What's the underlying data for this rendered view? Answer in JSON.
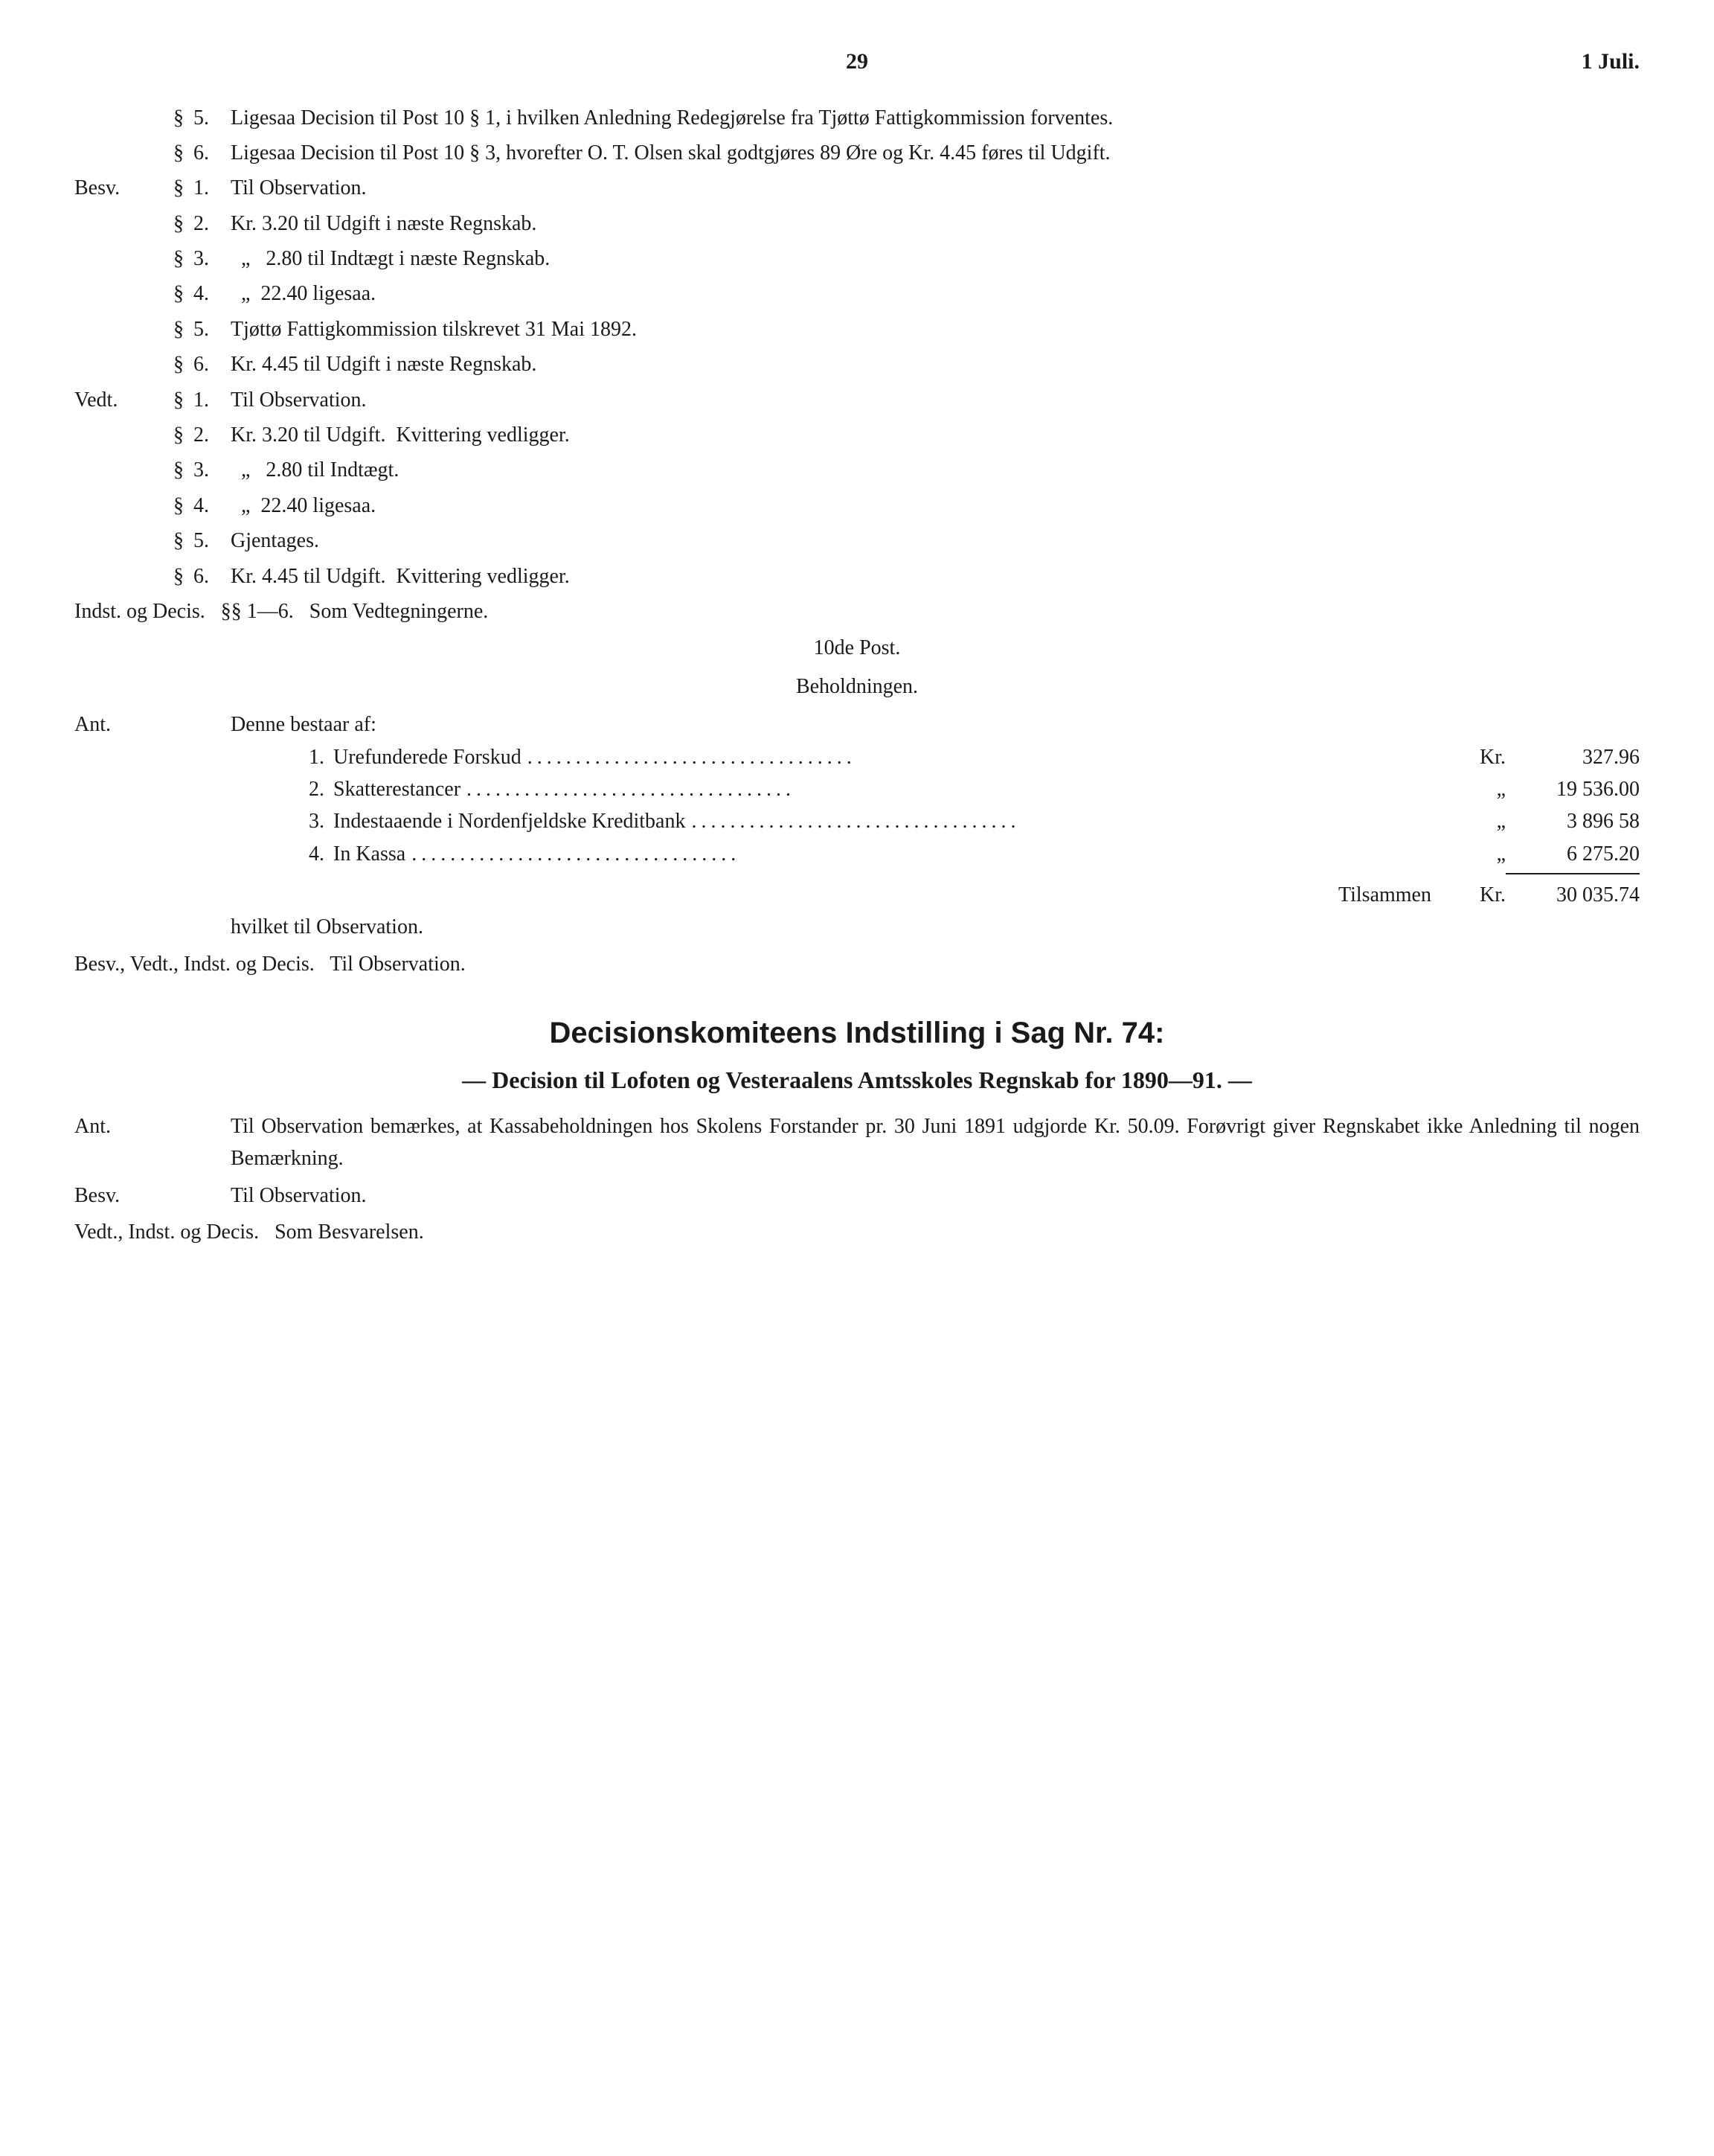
{
  "header": {
    "page_number": "29",
    "date": "1 Juli."
  },
  "top_entries": [
    {
      "margin": "",
      "sym": "§",
      "num": "5.",
      "text": "Ligesaa Decision til Post 10 § 1, i hvilken Anledning Redegjørelse fra Tjøttø Fattigkommission forventes."
    },
    {
      "margin": "",
      "sym": "§",
      "num": "6.",
      "text": "Ligesaa Decision til Post 10 § 3, hvorefter O. T. Olsen skal godtgjøres 89 Øre og Kr. 4.45 føres til Udgift."
    },
    {
      "margin": "Besv.",
      "sym": "§",
      "num": "1.",
      "text": "Til Observation."
    },
    {
      "margin": "",
      "sym": "§",
      "num": "2.",
      "text": "Kr. 3.20 til Udgift i næste Regnskab."
    },
    {
      "margin": "",
      "sym": "§",
      "num": "3.",
      "text": "  „   2.80 til Indtægt i næste Regnskab."
    },
    {
      "margin": "",
      "sym": "§",
      "num": "4.",
      "text": "  „  22.40 ligesaa."
    },
    {
      "margin": "",
      "sym": "§",
      "num": "5.",
      "text": "Tjøttø Fattigkommission tilskrevet 31 Mai 1892."
    },
    {
      "margin": "",
      "sym": "§",
      "num": "6.",
      "text": "Kr. 4.45 til Udgift i næste Regnskab."
    },
    {
      "margin": "Vedt.",
      "sym": "§",
      "num": "1.",
      "text": "Til Observation."
    },
    {
      "margin": "",
      "sym": "§",
      "num": "2.",
      "text": "Kr. 3.20 til Udgift.  Kvittering vedligger."
    },
    {
      "margin": "",
      "sym": "§",
      "num": "3.",
      "text": "  „   2.80 til Indtægt."
    },
    {
      "margin": "",
      "sym": "§",
      "num": "4.",
      "text": "  „  22.40 ligesaa."
    },
    {
      "margin": "",
      "sym": "§",
      "num": "5.",
      "text": "Gjentages."
    },
    {
      "margin": "",
      "sym": "§",
      "num": "6.",
      "text": "Kr. 4.45 til Udgift.  Kvittering vedligger."
    }
  ],
  "indst_line": "Indst. og Decis.   §§ 1—6.   Som Vedtegningerne.",
  "post_title": "10de Post.",
  "post_sub": "Beholdningen.",
  "ant_label": "Ant.",
  "ant_intro": "Denne bestaar af:",
  "beholdning": [
    {
      "n": "1.",
      "desc": "Urefunderede Forskud",
      "kr": "Kr.",
      "val": "327.96"
    },
    {
      "n": "2.",
      "desc": "Skatterestancer",
      "kr": "„",
      "val": "19 536.00"
    },
    {
      "n": "3.",
      "desc": "Indestaaende i Nordenfjeldske Kreditbank",
      "kr": "„",
      "val": "3 896 58"
    },
    {
      "n": "4.",
      "desc": "In Kassa",
      "kr": "„",
      "val": "6 275.20"
    }
  ],
  "sum": {
    "label": "Tilsammen",
    "kr": "Kr.",
    "val": "30 035.74"
  },
  "obs_line": "hvilket til Observation.",
  "bvid_line": "Besv., Vedt., Indst. og Decis.   Til Observation.",
  "title": "Decisionskomiteens Indstilling i Sag Nr. 74:",
  "subtitle": "— Decision til Lofoten og Vesteraalens Amtsskoles Regnskab for 1890—91. —",
  "ant2": {
    "label": "Ant.",
    "text": "Til Observation bemærkes, at Kassabeholdningen hos Skolens Forstander pr. 30 Juni 1891 udgjorde Kr. 50.09.  Forøvrigt giver Regnskabet ikke Anledning til nogen Bemærkning."
  },
  "besv2": {
    "label": "Besv.",
    "text": "Til Observation."
  },
  "final": "Vedt., Indst. og Decis.   Som Besvarelsen."
}
